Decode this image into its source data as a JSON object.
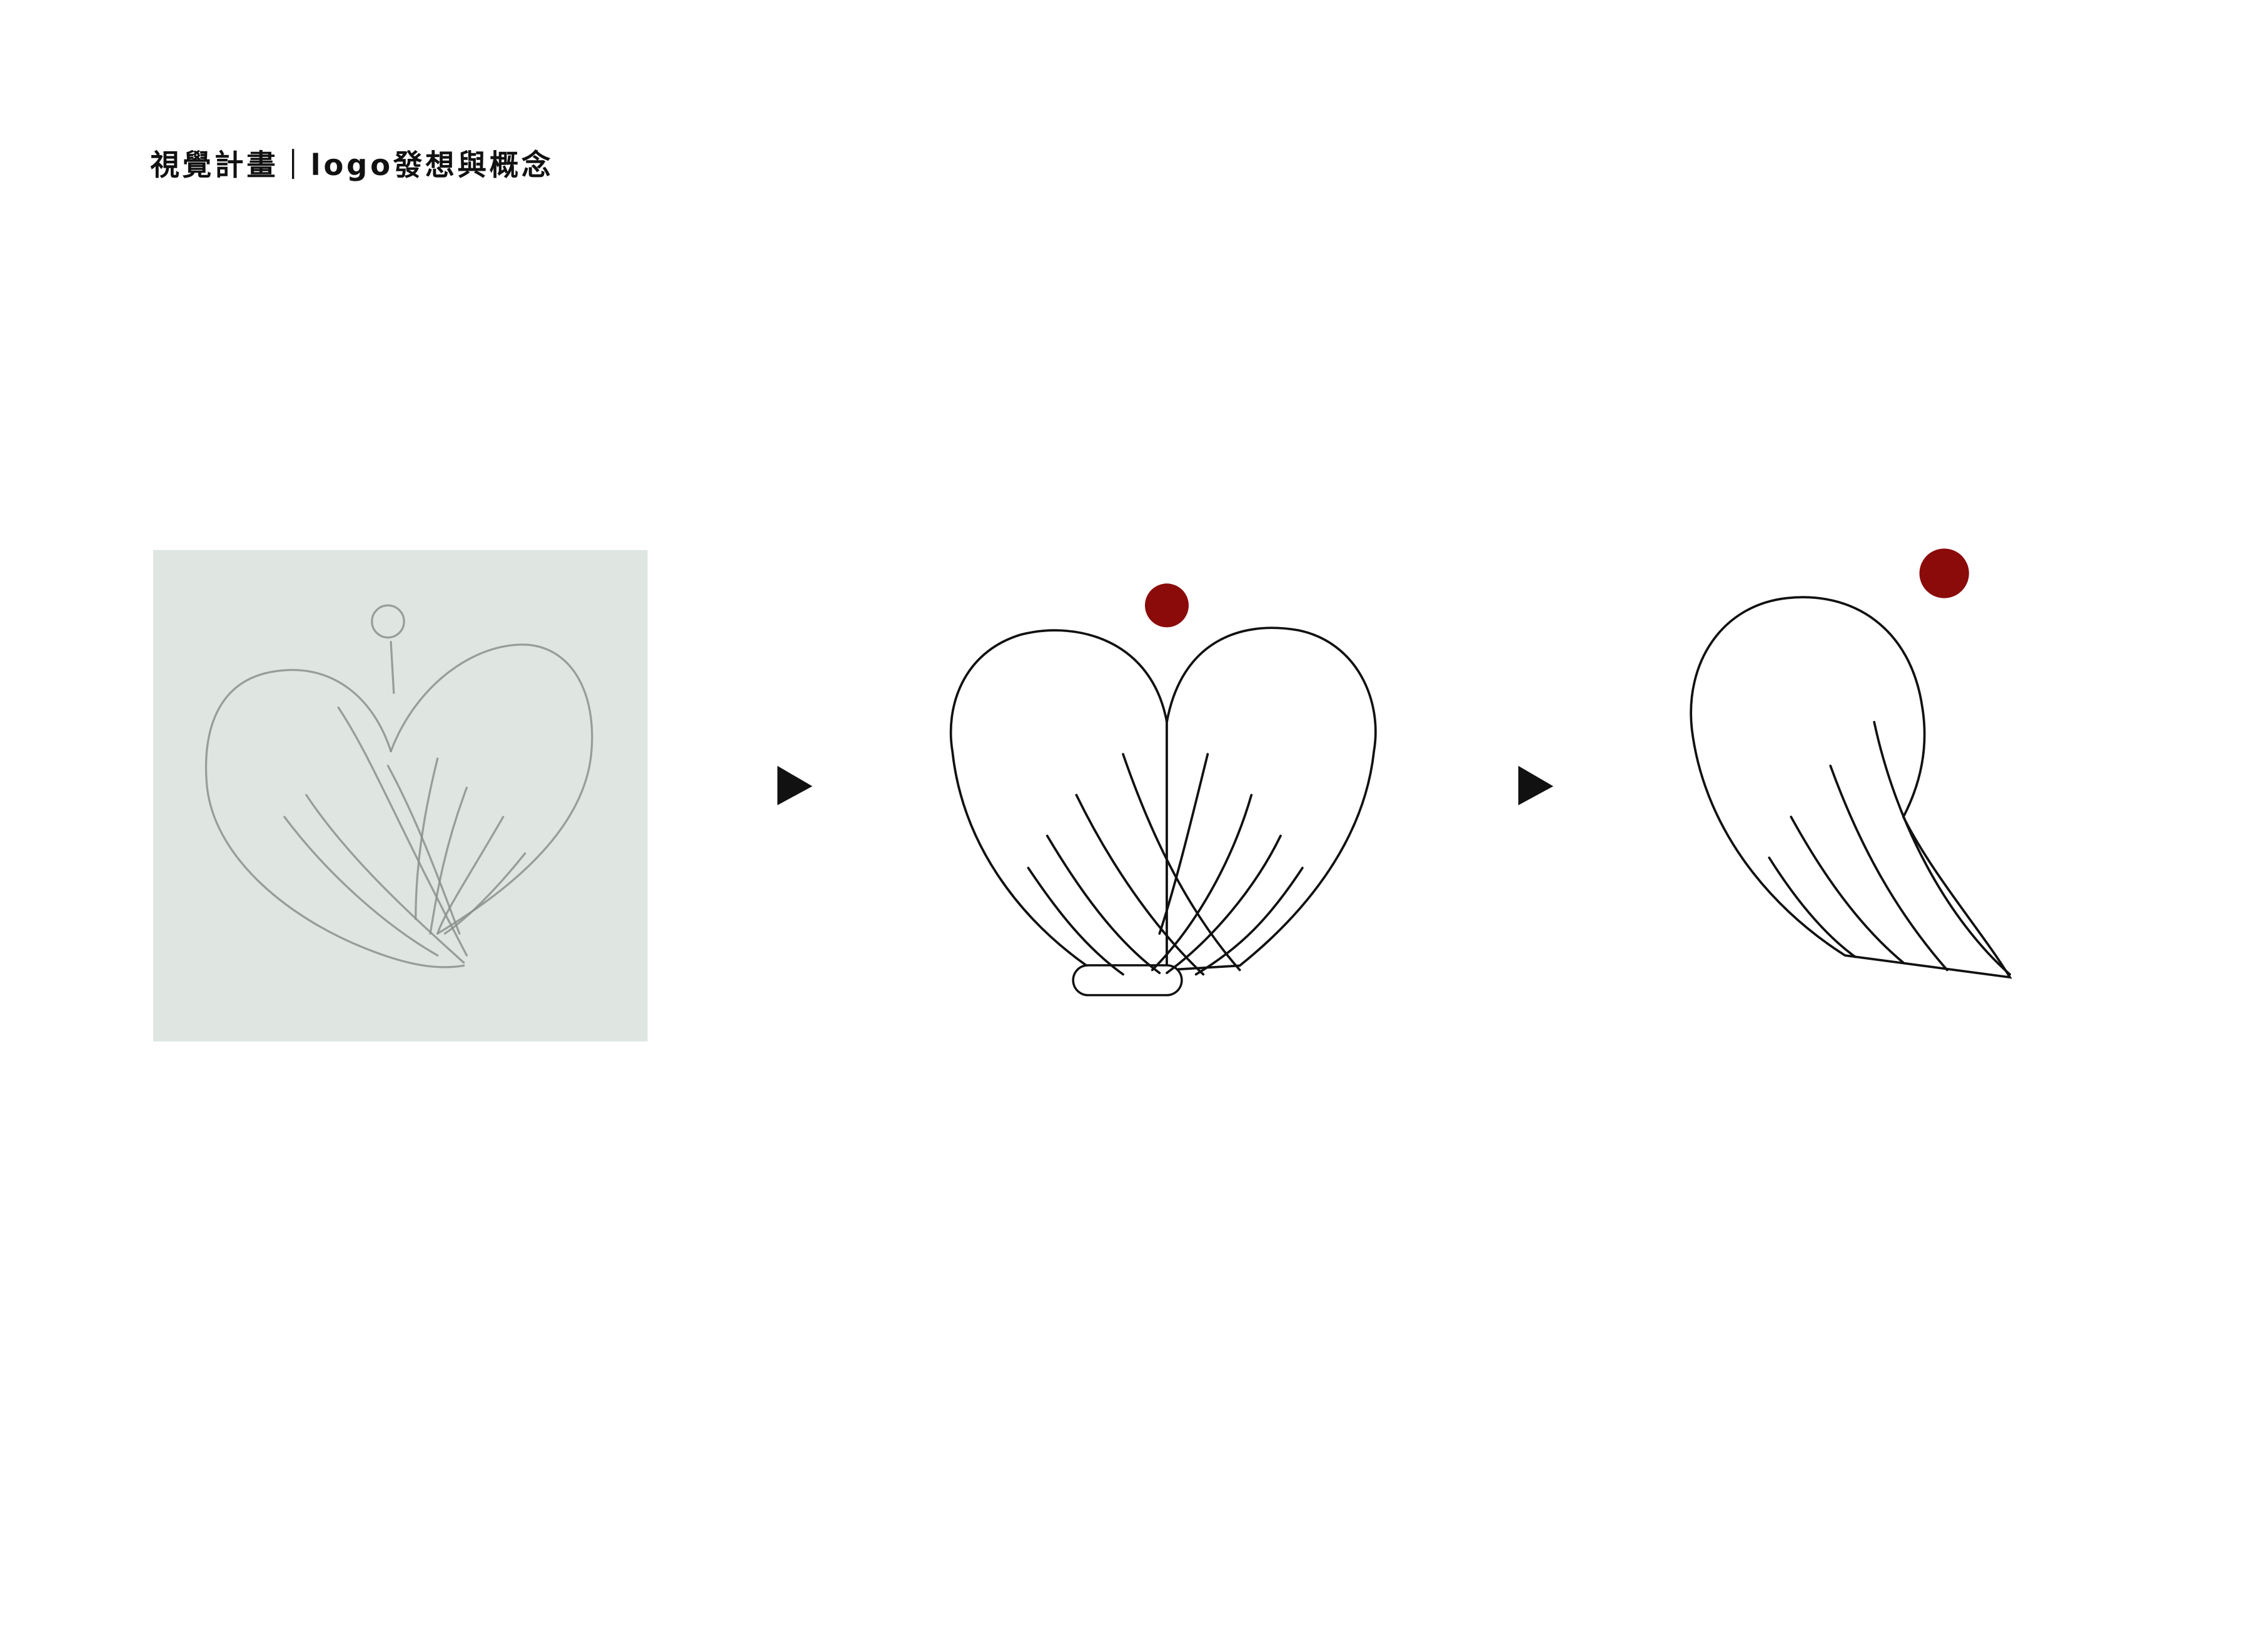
{
  "header": {
    "title": "視覺計畫｜logo發想與概念"
  }
}
